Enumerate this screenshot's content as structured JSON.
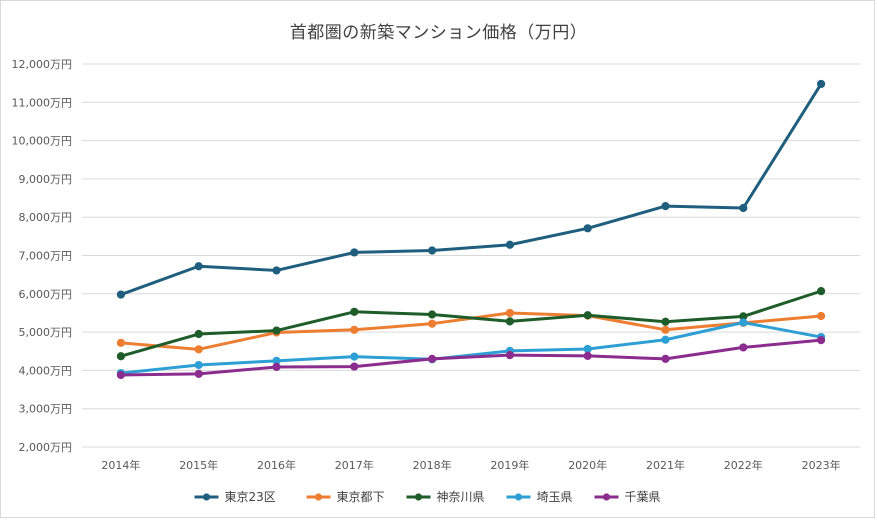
{
  "chart_data": {
    "type": "line",
    "title": "首都圏の新築マンション価格（万円）",
    "categories": [
      "2014年",
      "2015年",
      "2016年",
      "2017年",
      "2018年",
      "2019年",
      "2020年",
      "2021年",
      "2022年",
      "2023年"
    ],
    "y_ticks": [
      "2,000万円",
      "3,000万円",
      "4,000万円",
      "5,000万円",
      "6,000万円",
      "7,000万円",
      "8,000万円",
      "9,000万円",
      "10,000万円",
      "11,000万円",
      "12,000万円"
    ],
    "ylim": [
      2000,
      12000
    ],
    "grid": true,
    "legend_position": "bottom",
    "series": [
      {
        "name": "東京23区",
        "color": "#1f5e7e",
        "values": [
          5980,
          6720,
          6610,
          7080,
          7130,
          7280,
          7710,
          8290,
          8240,
          11480
        ]
      },
      {
        "name": "東京都下",
        "color": "#ed7d31",
        "values": [
          4720,
          4550,
          4990,
          5060,
          5220,
          5500,
          5430,
          5060,
          5240,
          5420
        ]
      },
      {
        "name": "神奈川県",
        "color": "#1e5c2a",
        "values": [
          4370,
          4950,
          5040,
          5530,
          5460,
          5280,
          5440,
          5270,
          5410,
          6070
        ]
      },
      {
        "name": "埼玉県",
        "color": "#2e9fd4",
        "values": [
          3930,
          4140,
          4250,
          4360,
          4290,
          4510,
          4560,
          4800,
          5250,
          4870
        ]
      },
      {
        "name": "千葉県",
        "color": "#8b2c8f",
        "values": [
          3880,
          3910,
          4090,
          4100,
          4300,
          4400,
          4380,
          4300,
          4600,
          4790
        ]
      }
    ]
  }
}
